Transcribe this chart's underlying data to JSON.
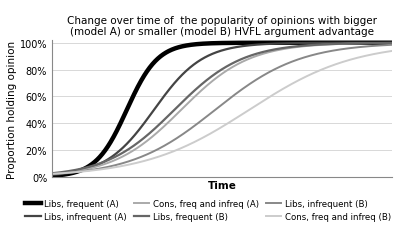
{
  "title": "Change over time of  the popularity of opinions with bigger\n(model A) or smaller (model B) HVFL argument advantage",
  "xlabel": "Time",
  "ylabel": "Proportion holding opinion",
  "yticks": [
    0,
    0.2,
    0.4,
    0.6,
    0.8,
    1.0
  ],
  "ytick_labels": [
    "0%",
    "20%",
    "40%",
    "60%",
    "80%",
    "100%"
  ],
  "curves": [
    {
      "label": "Libs, frequent (A)",
      "color": "#000000",
      "linewidth": 3.2,
      "k": 0.22,
      "x0": 22
    },
    {
      "label": "Libs, infrequent (A)",
      "color": "#444444",
      "linewidth": 1.6,
      "k": 0.14,
      "x0": 30
    },
    {
      "label": "Cons, freq and infreq (A)",
      "color": "#aaaaaa",
      "linewidth": 1.4,
      "k": 0.1,
      "x0": 38
    },
    {
      "label": "Libs, frequent (B)",
      "color": "#666666",
      "linewidth": 1.6,
      "k": 0.1,
      "x0": 36
    },
    {
      "label": "Libs, infrequent (B)",
      "color": "#888888",
      "linewidth": 1.4,
      "k": 0.08,
      "x0": 48
    },
    {
      "label": "Cons, freq and infreq (B)",
      "color": "#cccccc",
      "linewidth": 1.4,
      "k": 0.065,
      "x0": 58
    }
  ],
  "xlim": [
    0,
    100
  ],
  "ylim": [
    0,
    1.02
  ],
  "title_fontsize": 7.5,
  "axis_label_fontsize": 7.5,
  "tick_fontsize": 7,
  "legend_fontsize": 6.2,
  "background_color": "#ffffff",
  "grid_color": "#d8d8d8",
  "legend_order": [
    "Libs, frequent (A)",
    "Libs, infrequent (A)",
    "Cons, freq and infreq (A)",
    "Libs, frequent (B)",
    "Libs, infrequent (B)",
    "Cons, freq and infreq (B)"
  ]
}
